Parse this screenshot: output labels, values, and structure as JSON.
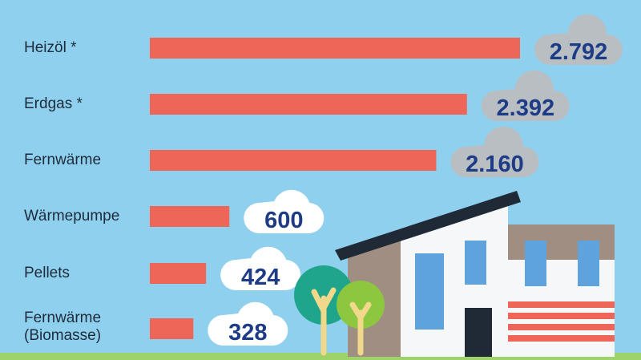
{
  "chart_data": {
    "type": "bar",
    "orientation": "horizontal",
    "title": "",
    "categories": [
      "Heizöl *",
      "Erdgas *",
      "Fernwärme",
      "Wärmepumpe",
      "Pellets",
      "Fernwärme\n(Biomasse)"
    ],
    "values": [
      2792,
      2392,
      2160,
      600,
      424,
      328
    ],
    "value_labels": [
      "2.792",
      "2.392",
      "2.160",
      "600",
      "424",
      "328"
    ],
    "xlim": [
      0,
      3300
    ],
    "grid": false,
    "legend": "none"
  },
  "colors": {
    "background": "#8fd0ef",
    "bar": "#ee6657",
    "cloud_dark": "#b9bec2",
    "cloud_light": "#ffffff",
    "value_text": "#1e3c86",
    "label_text": "#1d2b3a"
  }
}
